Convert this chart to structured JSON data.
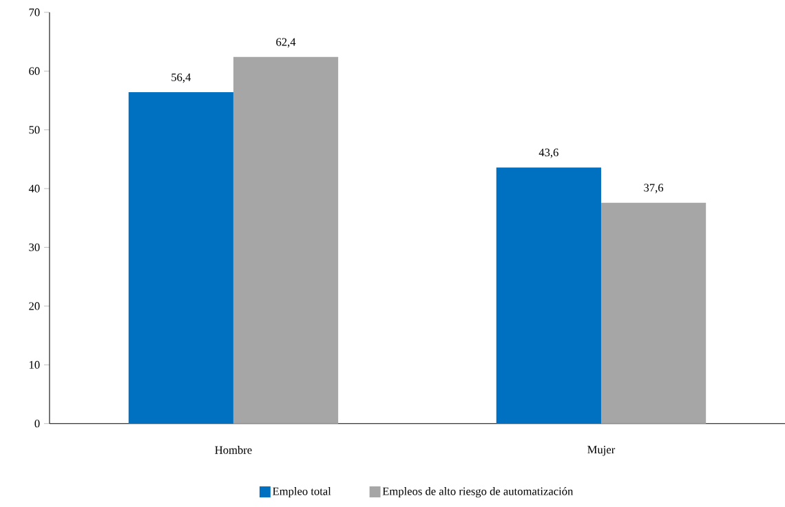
{
  "chart_data": {
    "type": "bar",
    "categories": [
      "Hombre",
      "Mujer"
    ],
    "series": [
      {
        "name": "Empleo total",
        "color": "#0070c0",
        "values": [
          56.4,
          43.6
        ],
        "value_labels": [
          "56,4",
          "43,6"
        ]
      },
      {
        "name": "Empleos de alto riesgo de automatización",
        "color": "#a6a6a6",
        "values": [
          62.4,
          37.6
        ],
        "value_labels": [
          "62,4",
          "37,6"
        ]
      }
    ],
    "ylim": [
      0,
      70
    ],
    "yticks": [
      0,
      10,
      20,
      30,
      40,
      50,
      60,
      70
    ],
    "grid": false,
    "legend": "bottom"
  }
}
